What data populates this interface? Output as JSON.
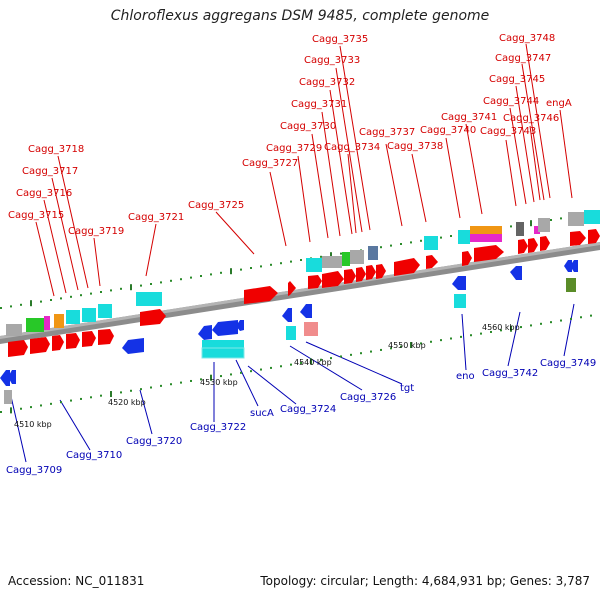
{
  "title": "Chloroflexus aggregans DSM 9485, complete genome",
  "footer": {
    "accession": "Accession: NC_011831",
    "topology": "Topology: circular; Length: 4,684,931 bp; Genes: 3,787"
  },
  "scale_labels": [
    "4510 kbp",
    "4520 kbp",
    "4530 kbp",
    "4540 kbp",
    "4550 kbp",
    "4560 kbp"
  ],
  "colors": {
    "forward_label": "#d40000",
    "reverse_label": "#0000b4",
    "forward_gene": "#f00000",
    "reverse_gene": "#1432e6",
    "cyan": "#18dcdc",
    "gray": "#a8a8a8",
    "green": "#28c828",
    "magenta": "#e628c8",
    "orange": "#f09614",
    "dark_green": "#5a8c28",
    "pink": "#f08c8c",
    "axis": "#8c8c8c"
  },
  "forward_labels": [
    "Cagg_3715",
    "Cagg_3716",
    "Cagg_3717",
    "Cagg_3718",
    "Cagg_3719",
    "Cagg_3721",
    "Cagg_3725",
    "Cagg_3727",
    "Cagg_3729",
    "Cagg_3730",
    "Cagg_3731",
    "Cagg_3732",
    "Cagg_3733",
    "Cagg_3734",
    "Cagg_3735",
    "Cagg_3737",
    "Cagg_3738",
    "Cagg_3740",
    "Cagg_3741",
    "Cagg_3743",
    "Cagg_3744",
    "Cagg_3745",
    "Cagg_3746",
    "Cagg_3747",
    "Cagg_3748",
    "engA"
  ],
  "reverse_labels": [
    "Cagg_3709",
    "Cagg_3710",
    "Cagg_3720",
    "Cagg_3722",
    "sucA",
    "Cagg_3724",
    "Cagg_3726",
    "tgt",
    "eno",
    "Cagg_3742",
    "Cagg_3749"
  ]
}
